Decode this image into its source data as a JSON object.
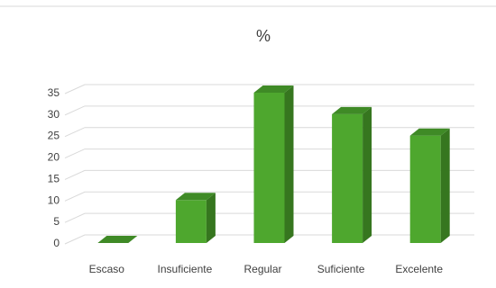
{
  "chart_data": {
    "type": "bar",
    "title": "%",
    "categories": [
      "Escaso",
      "Insuficiente",
      "Regular",
      "Suficiente",
      "Excelente"
    ],
    "values": [
      0,
      10,
      35,
      30,
      25
    ],
    "ylim": [
      0,
      35
    ],
    "yticks": [
      0,
      5,
      10,
      15,
      20,
      25,
      30,
      35
    ],
    "grid": true,
    "style": "3d-column",
    "colors": {
      "front": "#4ea72e",
      "side": "#36761f",
      "top": "#3f8a26",
      "grid": "#d9d9d9",
      "divider": "#d9d9d9"
    }
  }
}
